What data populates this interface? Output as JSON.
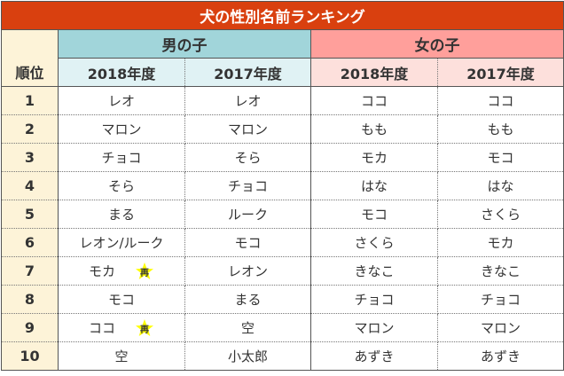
{
  "title": "犬の性別名前ランキング",
  "groups": {
    "boys": "男の子",
    "girls": "女の子"
  },
  "rank_header": "順位",
  "years": [
    "2018年度",
    "2017年度",
    "2018年度",
    "2017年度"
  ],
  "badge_text": "再",
  "colors": {
    "title": "#d9400f",
    "boys": "#a1d5da",
    "girls": "#ff9f9b",
    "rank": "#fdf3d8",
    "badge": "#ffff00"
  },
  "rows": [
    {
      "rank": "1",
      "cells": [
        "レオ",
        "レオ",
        "ココ",
        "ココ"
      ]
    },
    {
      "rank": "2",
      "cells": [
        "マロン",
        "マロン",
        "もも",
        "もも"
      ]
    },
    {
      "rank": "3",
      "cells": [
        "チョコ",
        "そら",
        "モカ",
        "モコ"
      ]
    },
    {
      "rank": "4",
      "cells": [
        "そら",
        "チョコ",
        "はな",
        "はな"
      ]
    },
    {
      "rank": "5",
      "cells": [
        "まる",
        "ルーク",
        "モコ",
        "さくら"
      ]
    },
    {
      "rank": "6",
      "cells": [
        "レオン/ルーク",
        "モコ",
        "さくら",
        "モカ"
      ]
    },
    {
      "rank": "7",
      "cells": [
        "モカ",
        "レオン",
        "きなこ",
        "きなこ"
      ],
      "badge": true
    },
    {
      "rank": "8",
      "cells": [
        "モコ",
        "まる",
        "チョコ",
        "チョコ"
      ]
    },
    {
      "rank": "9",
      "cells": [
        "ココ",
        "空",
        "マロン",
        "マロン"
      ],
      "badge": true
    },
    {
      "rank": "10",
      "cells": [
        "空",
        "小太郎",
        "あずき",
        "あずき"
      ]
    }
  ]
}
